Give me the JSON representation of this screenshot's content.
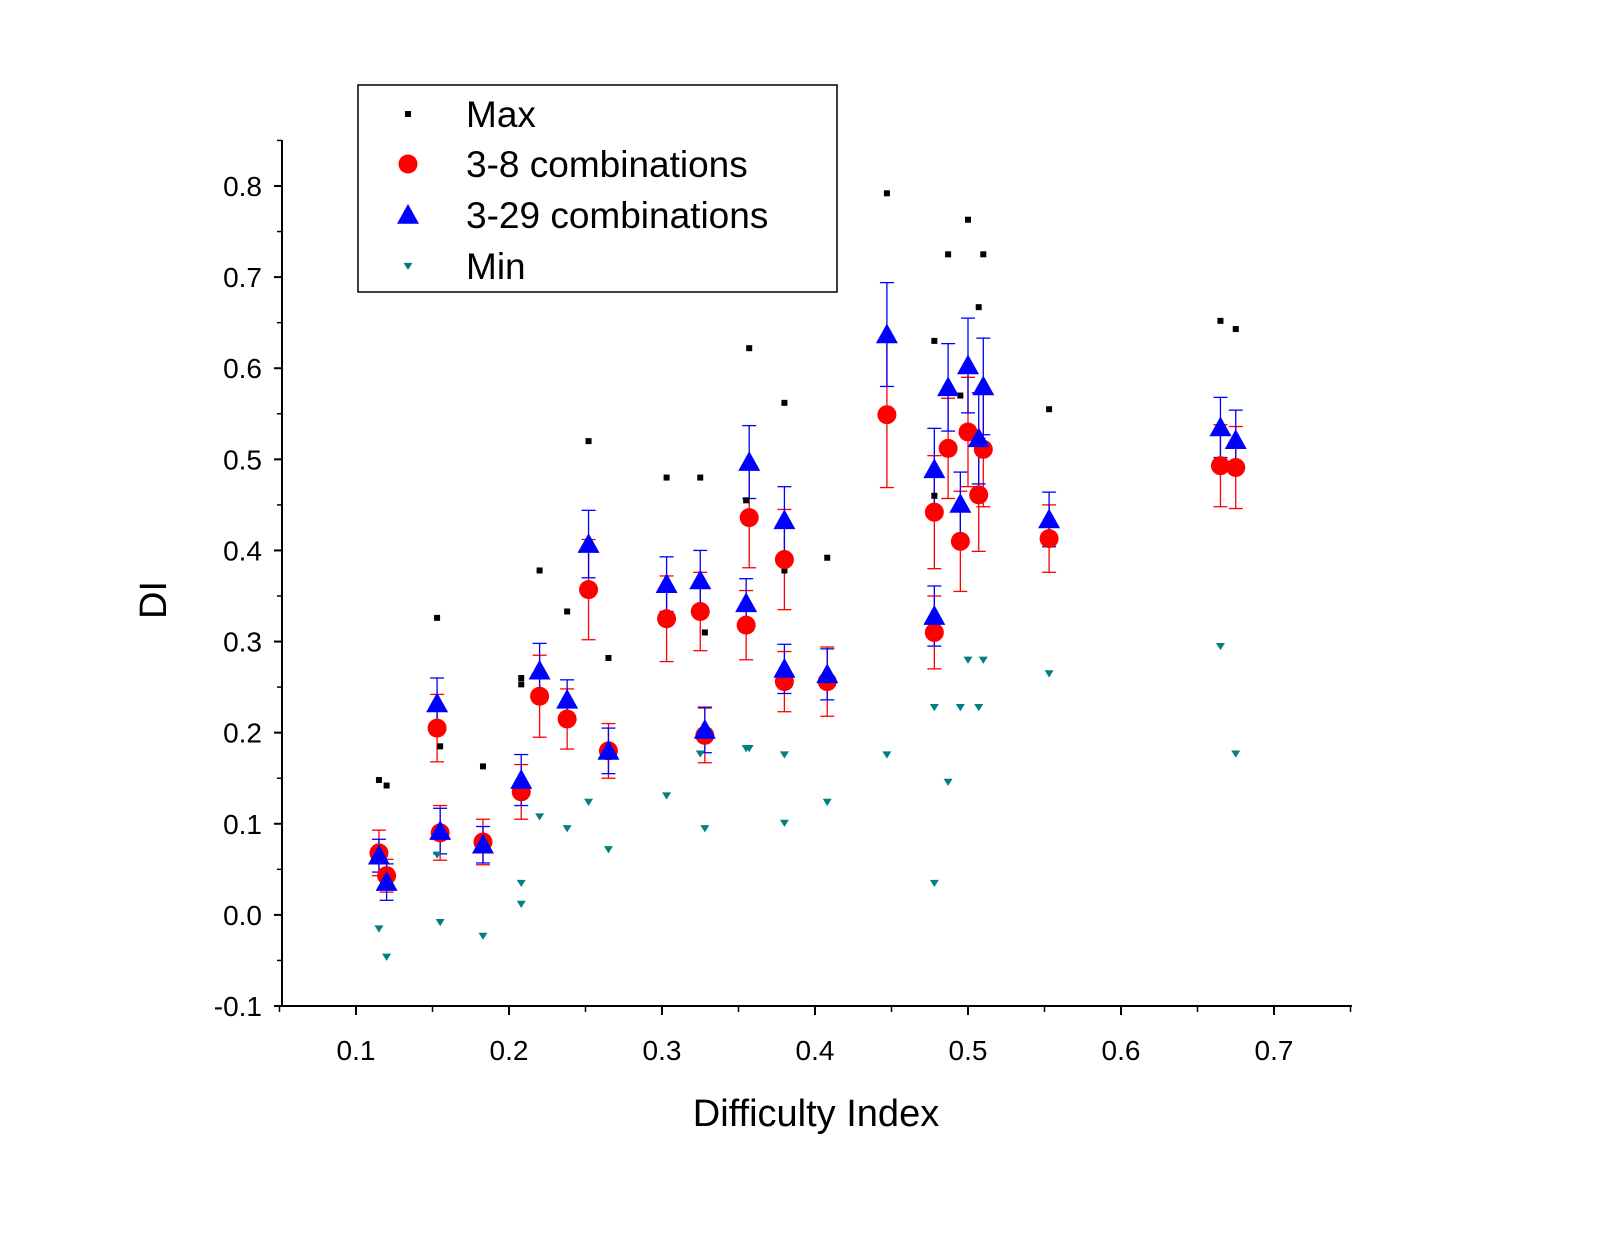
{
  "chart_data": {
    "type": "scatter",
    "title": "",
    "xlabel": "Difficulty Index",
    "ylabel": "DI",
    "xlim": [
      0.05,
      0.75
    ],
    "ylim": [
      -0.1,
      0.85
    ],
    "xticks": [
      0.1,
      0.2,
      0.3,
      0.4,
      0.5,
      0.6,
      0.7
    ],
    "xtick_labels": [
      "0.1",
      "0.2",
      "0.3",
      "0.4",
      "0.5",
      "0.6",
      "0.7"
    ],
    "yticks": [
      -0.1,
      0.0,
      0.1,
      0.2,
      0.3,
      0.4,
      0.5,
      0.6,
      0.7,
      0.8
    ],
    "ytick_labels": [
      "-0.1",
      "0.0",
      "0.1",
      "0.2",
      "0.3",
      "0.4",
      "0.5",
      "0.6",
      "0.7",
      "0.8"
    ],
    "grid": false,
    "legend_position": "top-left",
    "series": [
      {
        "name": "Max",
        "marker": "square",
        "color": "#000000",
        "points": [
          [
            0.115,
            0.148
          ],
          [
            0.12,
            0.142
          ],
          [
            0.153,
            0.326
          ],
          [
            0.155,
            0.185
          ],
          [
            0.183,
            0.163
          ],
          [
            0.208,
            0.26
          ],
          [
            0.208,
            0.253
          ],
          [
            0.22,
            0.378
          ],
          [
            0.238,
            0.333
          ],
          [
            0.252,
            0.52
          ],
          [
            0.265,
            0.282
          ],
          [
            0.303,
            0.48
          ],
          [
            0.325,
            0.48
          ],
          [
            0.328,
            0.31
          ],
          [
            0.355,
            0.455
          ],
          [
            0.357,
            0.622
          ],
          [
            0.38,
            0.562
          ],
          [
            0.38,
            0.378
          ],
          [
            0.408,
            0.392
          ],
          [
            0.447,
            0.792
          ],
          [
            0.478,
            0.63
          ],
          [
            0.478,
            0.46
          ],
          [
            0.487,
            0.725
          ],
          [
            0.495,
            0.57
          ],
          [
            0.5,
            0.763
          ],
          [
            0.507,
            0.667
          ],
          [
            0.51,
            0.725
          ],
          [
            0.553,
            0.555
          ],
          [
            0.665,
            0.652
          ],
          [
            0.675,
            0.643
          ]
        ]
      },
      {
        "name": "3-8 combinations",
        "marker": "circle",
        "color": "#ff0000",
        "error_color": "#ff0000",
        "points": [
          [
            0.115,
            0.068,
            0.025
          ],
          [
            0.12,
            0.043,
            0.018
          ],
          [
            0.153,
            0.205,
            0.037
          ],
          [
            0.155,
            0.09,
            0.03
          ],
          [
            0.183,
            0.08,
            0.025
          ],
          [
            0.208,
            0.135,
            0.03
          ],
          [
            0.22,
            0.24,
            0.045
          ],
          [
            0.238,
            0.215,
            0.033
          ],
          [
            0.252,
            0.357,
            0.055
          ],
          [
            0.265,
            0.18,
            0.03
          ],
          [
            0.303,
            0.325,
            0.047
          ],
          [
            0.325,
            0.333,
            0.043
          ],
          [
            0.328,
            0.197,
            0.03
          ],
          [
            0.355,
            0.318,
            0.038
          ],
          [
            0.357,
            0.436,
            0.055
          ],
          [
            0.38,
            0.39,
            0.055
          ],
          [
            0.38,
            0.256,
            0.033
          ],
          [
            0.408,
            0.256,
            0.038
          ],
          [
            0.447,
            0.549,
            0.08
          ],
          [
            0.478,
            0.442,
            0.062
          ],
          [
            0.478,
            0.31,
            0.04
          ],
          [
            0.487,
            0.512,
            0.055
          ],
          [
            0.495,
            0.41,
            0.055
          ],
          [
            0.5,
            0.53,
            0.06
          ],
          [
            0.507,
            0.461,
            0.062
          ],
          [
            0.51,
            0.511,
            0.063
          ],
          [
            0.553,
            0.413,
            0.037
          ],
          [
            0.665,
            0.493,
            0.045
          ],
          [
            0.675,
            0.491,
            0.045
          ]
        ]
      },
      {
        "name": "3-29 combinations",
        "marker": "triangle-up",
        "color": "#0000ff",
        "error_color": "#0000ff",
        "points": [
          [
            0.115,
            0.065,
            0.018
          ],
          [
            0.12,
            0.036,
            0.02
          ],
          [
            0.153,
            0.232,
            0.028
          ],
          [
            0.155,
            0.092,
            0.025
          ],
          [
            0.183,
            0.077,
            0.02
          ],
          [
            0.208,
            0.148,
            0.028
          ],
          [
            0.22,
            0.268,
            0.03
          ],
          [
            0.238,
            0.236,
            0.022
          ],
          [
            0.252,
            0.407,
            0.037
          ],
          [
            0.265,
            0.18,
            0.025
          ],
          [
            0.303,
            0.363,
            0.03
          ],
          [
            0.325,
            0.367,
            0.033
          ],
          [
            0.328,
            0.203,
            0.025
          ],
          [
            0.355,
            0.342,
            0.027
          ],
          [
            0.357,
            0.497,
            0.04
          ],
          [
            0.38,
            0.433,
            0.037
          ],
          [
            0.38,
            0.27,
            0.027
          ],
          [
            0.408,
            0.264,
            0.028
          ],
          [
            0.447,
            0.637,
            0.057
          ],
          [
            0.478,
            0.489,
            0.045
          ],
          [
            0.478,
            0.328,
            0.033
          ],
          [
            0.487,
            0.579,
            0.048
          ],
          [
            0.495,
            0.451,
            0.035
          ],
          [
            0.5,
            0.603,
            0.052
          ],
          [
            0.507,
            0.523,
            0.05
          ],
          [
            0.51,
            0.58,
            0.053
          ],
          [
            0.553,
            0.434,
            0.03
          ],
          [
            0.665,
            0.535,
            0.033
          ],
          [
            0.675,
            0.521,
            0.033
          ]
        ]
      },
      {
        "name": "Min",
        "marker": "triangle-down",
        "color": "#008080",
        "points": [
          [
            0.115,
            -0.015
          ],
          [
            0.12,
            -0.046
          ],
          [
            0.153,
            0.066
          ],
          [
            0.155,
            -0.008
          ],
          [
            0.183,
            -0.023
          ],
          [
            0.208,
            0.035
          ],
          [
            0.208,
            0.012
          ],
          [
            0.22,
            0.108
          ],
          [
            0.238,
            0.095
          ],
          [
            0.252,
            0.124
          ],
          [
            0.265,
            0.072
          ],
          [
            0.303,
            0.131
          ],
          [
            0.325,
            0.177
          ],
          [
            0.328,
            0.095
          ],
          [
            0.355,
            0.183
          ],
          [
            0.357,
            0.183
          ],
          [
            0.38,
            0.176
          ],
          [
            0.38,
            0.101
          ],
          [
            0.408,
            0.124
          ],
          [
            0.447,
            0.176
          ],
          [
            0.478,
            0.228
          ],
          [
            0.478,
            0.035
          ],
          [
            0.487,
            0.146
          ],
          [
            0.495,
            0.228
          ],
          [
            0.5,
            0.28
          ],
          [
            0.507,
            0.228
          ],
          [
            0.51,
            0.28
          ],
          [
            0.553,
            0.265
          ],
          [
            0.665,
            0.295
          ],
          [
            0.675,
            0.177
          ]
        ]
      }
    ]
  }
}
